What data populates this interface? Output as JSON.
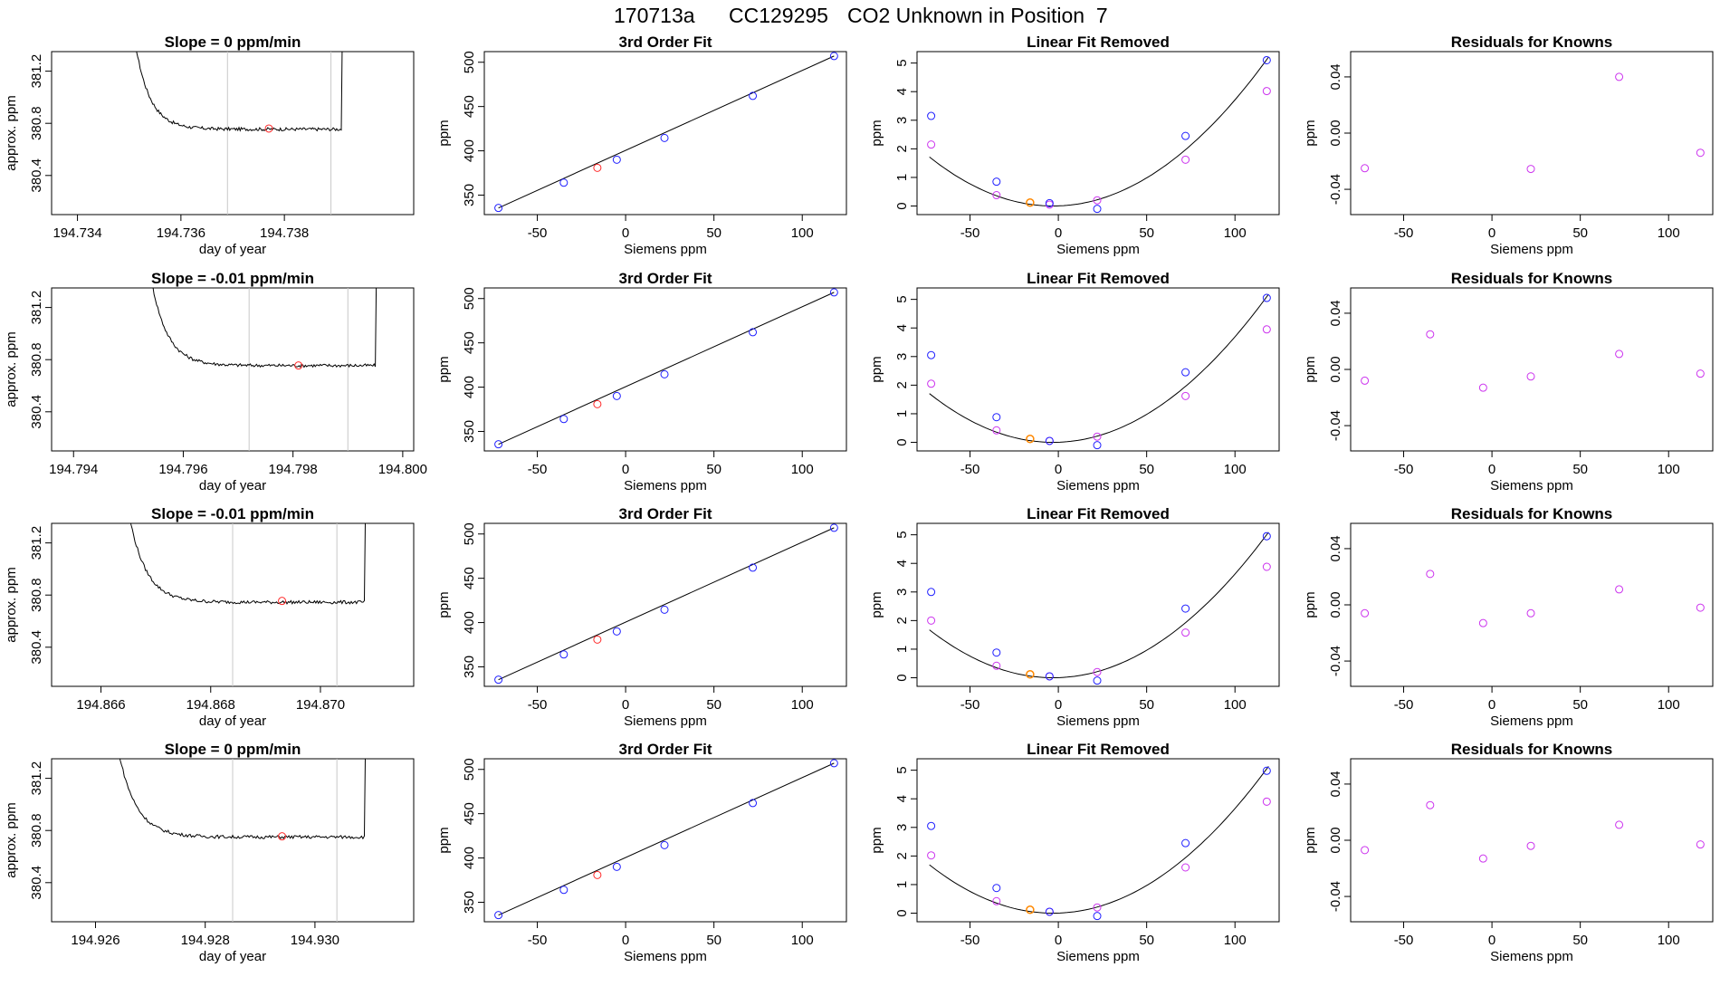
{
  "header": {
    "run_id": "170713a",
    "tank_id": "CC129295",
    "description": "CO2 Unknown in Position  7"
  },
  "colors": {
    "blue": "#1f1fff",
    "red": "#ff2a2a",
    "magenta": "#cc33ee",
    "line": "#000000",
    "vline": "#c8c8c8",
    "orange": "#ff8800"
  },
  "rows": [
    {
      "trace": {
        "title": "Slope =  0  ppm/min",
        "xlabel": "day of year",
        "ylabel": "approx. ppm",
        "xlim": [
          194.7335,
          194.7405
        ],
        "ylim": [
          380.1,
          381.35
        ],
        "xticks": [
          "194.734",
          "194.736",
          "194.738"
        ],
        "xtick_values": [
          194.734,
          194.736,
          194.738
        ],
        "yticks": [
          "380.4",
          "380.8",
          "381.2"
        ],
        "ytick_values": [
          380.4,
          380.8,
          381.2
        ],
        "vlines": [
          194.7369,
          194.7389
        ],
        "red_point": [
          194.7377,
          380.76
        ],
        "start_x": 194.7351,
        "end_x": 194.7391,
        "plateau": 380.755,
        "rise": 0.7
      },
      "fit": {
        "title": "3rd Order Fit",
        "xlabel": "Siemens ppm",
        "ylabel": "ppm",
        "xlim": [
          -80,
          125
        ],
        "ylim": [
          328,
          512
        ],
        "xticks": [
          "-50",
          "0",
          "50",
          "100"
        ],
        "xtick_values": [
          -50,
          0,
          50,
          100
        ],
        "yticks": [
          "350",
          "400",
          "450",
          "500"
        ],
        "ytick_values": [
          350,
          400,
          450,
          500
        ],
        "blue_x": [
          -72,
          -35,
          -5,
          22,
          72,
          118
        ],
        "blue_y": [
          335.5,
          364,
          390,
          414.5,
          462,
          507
        ],
        "red_point": [
          -16,
          380.8
        ]
      },
      "linear": {
        "title": "Linear Fit Removed",
        "xlabel": "Siemens ppm",
        "ylabel": "ppm",
        "xlim": [
          -80,
          125
        ],
        "ylim": [
          -0.3,
          5.4
        ],
        "xticks": [
          "-50",
          "0",
          "50",
          "100"
        ],
        "xtick_values": [
          -50,
          0,
          50,
          100
        ],
        "yticks": [
          "0",
          "1",
          "2",
          "3",
          "4",
          "5"
        ],
        "ytick_values": [
          0,
          1,
          2,
          3,
          4,
          5
        ],
        "blue_x": [
          -72,
          -35,
          -5,
          22,
          72,
          118
        ],
        "blue_y": [
          3.15,
          0.85,
          0.1,
          -0.1,
          2.45,
          5.1
        ],
        "magenta_x": [
          -72,
          -35,
          -5,
          22,
          72,
          118
        ],
        "magenta_y": [
          2.15,
          0.38,
          0.05,
          0.2,
          1.62,
          4.02
        ],
        "orange_point": [
          -16,
          0.12
        ],
        "curve_coef": 0.00035
      },
      "resid": {
        "title": "Residuals for Knowns",
        "xlabel": "Siemens ppm",
        "ylabel": "ppm",
        "xlim": [
          -80,
          125
        ],
        "ylim": [
          -0.058,
          0.058
        ],
        "xticks": [
          "-50",
          "0",
          "50",
          "100"
        ],
        "xtick_values": [
          -50,
          0,
          50,
          100
        ],
        "yticks": [
          "-0.04",
          "0.00",
          "0.04"
        ],
        "ytick_values": [
          -0.04,
          0.0,
          0.04
        ],
        "magenta_x": [
          -72,
          22,
          72,
          118
        ],
        "magenta_y": [
          -0.025,
          -0.0255,
          0.04,
          -0.014
        ]
      }
    },
    {
      "trace": {
        "title": "Slope =  -0.01  ppm/min",
        "xlabel": "day of year",
        "ylabel": "approx. ppm",
        "xlim": [
          194.7936,
          194.8002
        ],
        "ylim": [
          380.1,
          381.35
        ],
        "xticks": [
          "194.794",
          "194.796",
          "194.798",
          "194.800"
        ],
        "xtick_values": [
          194.794,
          194.796,
          194.798,
          194.8
        ],
        "yticks": [
          "380.4",
          "380.8",
          "381.2"
        ],
        "ytick_values": [
          380.4,
          380.8,
          381.2
        ],
        "vlines": [
          194.7972,
          194.799
        ],
        "red_point": [
          194.7981,
          380.755
        ],
        "start_x": 194.7954,
        "end_x": 194.7995,
        "plateau": 380.755,
        "rise": 0.7
      },
      "fit": {
        "title": "3rd Order Fit",
        "xlabel": "Siemens ppm",
        "ylabel": "ppm",
        "xlim": [
          -80,
          125
        ],
        "ylim": [
          328,
          512
        ],
        "xticks": [
          "-50",
          "0",
          "50",
          "100"
        ],
        "xtick_values": [
          -50,
          0,
          50,
          100
        ],
        "yticks": [
          "350",
          "400",
          "450",
          "500"
        ],
        "ytick_values": [
          350,
          400,
          450,
          500
        ],
        "blue_x": [
          -72,
          -35,
          -5,
          22,
          72,
          118
        ],
        "blue_y": [
          335.5,
          364,
          390,
          414.5,
          462,
          507
        ],
        "red_point": [
          -16,
          380.8
        ]
      },
      "linear": {
        "title": "Linear Fit Removed",
        "xlabel": "Siemens ppm",
        "ylabel": "ppm",
        "xlim": [
          -80,
          125
        ],
        "ylim": [
          -0.3,
          5.4
        ],
        "xticks": [
          "-50",
          "0",
          "50",
          "100"
        ],
        "xtick_values": [
          -50,
          0,
          50,
          100
        ],
        "yticks": [
          "0",
          "1",
          "2",
          "3",
          "4",
          "5"
        ],
        "ytick_values": [
          0,
          1,
          2,
          3,
          4,
          5
        ],
        "blue_x": [
          -72,
          -35,
          -5,
          22,
          72,
          118
        ],
        "blue_y": [
          3.05,
          0.88,
          0.05,
          -0.1,
          2.45,
          5.05
        ],
        "magenta_x": [
          -72,
          -35,
          -5,
          22,
          72,
          118
        ],
        "magenta_y": [
          2.05,
          0.42,
          0.05,
          0.2,
          1.62,
          3.95
        ],
        "orange_point": [
          -16,
          0.12
        ],
        "curve_coef": 0.000348
      },
      "resid": {
        "title": "Residuals for Knowns",
        "xlabel": "Siemens ppm",
        "ylabel": "ppm",
        "xlim": [
          -80,
          125
        ],
        "ylim": [
          -0.058,
          0.058
        ],
        "xticks": [
          "-50",
          "0",
          "50",
          "100"
        ],
        "xtick_values": [
          -50,
          0,
          50,
          100
        ],
        "yticks": [
          "-0.04",
          "0.00",
          "0.04"
        ],
        "ytick_values": [
          -0.04,
          0.0,
          0.04
        ],
        "magenta_x": [
          -72,
          -35,
          -5,
          22,
          72,
          118
        ],
        "magenta_y": [
          -0.008,
          0.025,
          -0.013,
          -0.005,
          0.011,
          -0.003
        ]
      }
    },
    {
      "trace": {
        "title": "Slope =  -0.01  ppm/min",
        "xlabel": "day of year",
        "ylabel": "approx. ppm",
        "xlim": [
          194.8651,
          194.8717
        ],
        "ylim": [
          380.1,
          381.35
        ],
        "xticks": [
          "194.866",
          "194.868",
          "194.870"
        ],
        "xtick_values": [
          194.866,
          194.868,
          194.87
        ],
        "yticks": [
          "380.4",
          "380.8",
          "381.2"
        ],
        "ytick_values": [
          380.4,
          380.8,
          381.2
        ],
        "vlines": [
          194.8684,
          194.8703
        ],
        "red_point": [
          194.8693,
          380.755
        ],
        "start_x": 194.8665,
        "end_x": 194.8708,
        "plateau": 380.745,
        "rise": 0.7
      },
      "fit": {
        "title": "3rd Order Fit",
        "xlabel": "Siemens ppm",
        "ylabel": "ppm",
        "xlim": [
          -80,
          125
        ],
        "ylim": [
          328,
          512
        ],
        "xticks": [
          "-50",
          "0",
          "50",
          "100"
        ],
        "xtick_values": [
          -50,
          0,
          50,
          100
        ],
        "yticks": [
          "350",
          "400",
          "450",
          "500"
        ],
        "ytick_values": [
          350,
          400,
          450,
          500
        ],
        "blue_x": [
          -72,
          -35,
          -5,
          22,
          72,
          118
        ],
        "blue_y": [
          335.5,
          364,
          390,
          414.5,
          462,
          507
        ],
        "red_point": [
          -16,
          380.8
        ]
      },
      "linear": {
        "title": "Linear Fit Removed",
        "xlabel": "Siemens ppm",
        "ylabel": "ppm",
        "xlim": [
          -80,
          125
        ],
        "ylim": [
          -0.3,
          5.4
        ],
        "xticks": [
          "-50",
          "0",
          "50",
          "100"
        ],
        "xtick_values": [
          -50,
          0,
          50,
          100
        ],
        "yticks": [
          "0",
          "1",
          "2",
          "3",
          "4",
          "5"
        ],
        "ytick_values": [
          0,
          1,
          2,
          3,
          4,
          5
        ],
        "blue_x": [
          -72,
          -35,
          -5,
          22,
          72,
          118
        ],
        "blue_y": [
          3.0,
          0.88,
          0.05,
          -0.1,
          2.42,
          4.95
        ],
        "magenta_x": [
          -72,
          -35,
          -5,
          22,
          72,
          118
        ],
        "magenta_y": [
          2.0,
          0.42,
          0.05,
          0.2,
          1.58,
          3.88
        ],
        "orange_point": [
          -16,
          0.12
        ],
        "curve_coef": 0.000342
      },
      "resid": {
        "title": "Residuals for Knowns",
        "xlabel": "Siemens ppm",
        "ylabel": "ppm",
        "xlim": [
          -80,
          125
        ],
        "ylim": [
          -0.058,
          0.058
        ],
        "xticks": [
          "-50",
          "0",
          "50",
          "100"
        ],
        "xtick_values": [
          -50,
          0,
          50,
          100
        ],
        "yticks": [
          "-0.04",
          "0.00",
          "0.04"
        ],
        "ytick_values": [
          -0.04,
          0.0,
          0.04
        ],
        "magenta_x": [
          -72,
          -35,
          -5,
          22,
          72,
          118
        ],
        "magenta_y": [
          -0.006,
          0.022,
          -0.013,
          -0.006,
          0.011,
          -0.002
        ]
      }
    },
    {
      "trace": {
        "title": "Slope =  0  ppm/min",
        "xlabel": "day of year",
        "ylabel": "approx. ppm",
        "xlim": [
          194.9252,
          194.9318
        ],
        "ylim": [
          380.1,
          381.35
        ],
        "xticks": [
          "194.926",
          "194.928",
          "194.930"
        ],
        "xtick_values": [
          194.926,
          194.928,
          194.93
        ],
        "yticks": [
          "380.4",
          "380.8",
          "381.2"
        ],
        "ytick_values": [
          380.4,
          380.8,
          381.2
        ],
        "vlines": [
          194.9285,
          194.9304
        ],
        "red_point": [
          194.9294,
          380.755
        ],
        "start_x": 194.9264,
        "end_x": 194.9309,
        "plateau": 380.75,
        "rise": 0.7
      },
      "fit": {
        "title": "3rd Order Fit",
        "xlabel": "Siemens ppm",
        "ylabel": "ppm",
        "xlim": [
          -80,
          125
        ],
        "ylim": [
          328,
          512
        ],
        "xticks": [
          "-50",
          "0",
          "50",
          "100"
        ],
        "xtick_values": [
          -50,
          0,
          50,
          100
        ],
        "yticks": [
          "350",
          "400",
          "450",
          "500"
        ],
        "ytick_values": [
          350,
          400,
          450,
          500
        ],
        "blue_x": [
          -72,
          -35,
          -5,
          22,
          72,
          118
        ],
        "blue_y": [
          335.5,
          364,
          390,
          414.5,
          462,
          507
        ],
        "red_point": [
          -16,
          380.8
        ]
      },
      "linear": {
        "title": "Linear Fit Removed",
        "xlabel": "Siemens ppm",
        "ylabel": "ppm",
        "xlim": [
          -80,
          125
        ],
        "ylim": [
          -0.3,
          5.4
        ],
        "xticks": [
          "-50",
          "0",
          "50",
          "100"
        ],
        "xtick_values": [
          -50,
          0,
          50,
          100
        ],
        "yticks": [
          "0",
          "1",
          "2",
          "3",
          "4",
          "5"
        ],
        "ytick_values": [
          0,
          1,
          2,
          3,
          4,
          5
        ],
        "blue_x": [
          -72,
          -35,
          -5,
          22,
          72,
          118
        ],
        "blue_y": [
          3.05,
          0.88,
          0.05,
          -0.1,
          2.45,
          4.98
        ],
        "magenta_x": [
          -72,
          -35,
          -5,
          22,
          72,
          118
        ],
        "magenta_y": [
          2.02,
          0.42,
          0.05,
          0.2,
          1.6,
          3.9
        ],
        "orange_point": [
          -16,
          0.12
        ],
        "curve_coef": 0.000345
      },
      "resid": {
        "title": "Residuals for Knowns",
        "xlabel": "Siemens ppm",
        "ylabel": "ppm",
        "xlim": [
          -80,
          125
        ],
        "ylim": [
          -0.058,
          0.058
        ],
        "xticks": [
          "-50",
          "0",
          "50",
          "100"
        ],
        "xtick_values": [
          -50,
          0,
          50,
          100
        ],
        "yticks": [
          "-0.04",
          "0.00",
          "0.04"
        ],
        "ytick_values": [
          -0.04,
          0.0,
          0.04
        ],
        "magenta_x": [
          -72,
          -35,
          -5,
          22,
          72,
          118
        ],
        "magenta_y": [
          -0.007,
          0.025,
          -0.013,
          -0.004,
          0.011,
          -0.003
        ]
      }
    }
  ],
  "chart_data": {
    "type": "scatter",
    "description_of_grid": "4 rows x 4 panels: time trace, 3rd order fit, linear fit removed, residuals for knowns",
    "layout": "4x4"
  }
}
